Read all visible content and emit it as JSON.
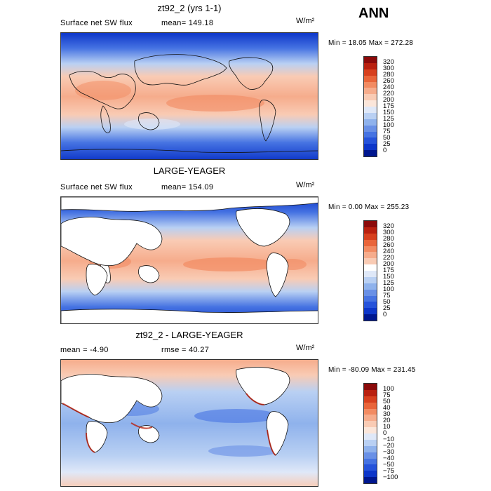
{
  "season": "ANN",
  "units": "W/m²",
  "panels": [
    {
      "title": "zt92_2 (yrs 1-1)",
      "left_label": "Surface net SW flux",
      "mean_label": "mean= 149.18",
      "minmax": "Min =  18.05 Max = 272.28",
      "colorbar": {
        "labels": [
          "320",
          "300",
          "280",
          "260",
          "240",
          "220",
          "200",
          "175",
          "150",
          "125",
          "100",
          "75",
          "50",
          "25",
          "0"
        ],
        "colors": [
          "#8b0a0a",
          "#b9200f",
          "#d7401e",
          "#e9653a",
          "#f28b62",
          "#f6ac8c",
          "#f9cbb4",
          "#fbe6da",
          "#dfe8f8",
          "#b9d0f3",
          "#8fb2ec",
          "#6990e6",
          "#4673e2",
          "#2653da",
          "#0d36c9",
          "#00178f"
        ]
      }
    },
    {
      "title": "LARGE-YEAGER",
      "left_label": "Surface net SW flux",
      "mean_label": "mean= 154.09",
      "minmax": "Min =   0.00 Max = 255.23",
      "colorbar": {
        "labels": [
          "320",
          "300",
          "280",
          "260",
          "240",
          "220",
          "200",
          "175",
          "150",
          "125",
          "100",
          "75",
          "50",
          "25",
          "0"
        ],
        "colors": [
          "#8b0a0a",
          "#b9200f",
          "#d7401e",
          "#e9653a",
          "#f28b62",
          "#f6ac8c",
          "#f9cbb4",
          "#ffffff",
          "#dfe8f8",
          "#b9d0f3",
          "#8fb2ec",
          "#6990e6",
          "#4673e2",
          "#2653da",
          "#0d36c9",
          "#00178f"
        ]
      }
    },
    {
      "title": "zt92_2 - LARGE-YEAGER",
      "left_label": "mean =   -4.90",
      "mean_label": "rmse =  40.27",
      "minmax": "Min = -80.09 Max = 231.45",
      "colorbar": {
        "labels": [
          "100",
          "75",
          "50",
          "40",
          "30",
          "20",
          "10",
          "0",
          "−10",
          "−20",
          "−30",
          "−40",
          "−50",
          "−75",
          "−100"
        ],
        "colors": [
          "#8b0a0a",
          "#b9200f",
          "#d7401e",
          "#e9653a",
          "#f28b62",
          "#f6ac8c",
          "#f9cbb4",
          "#fbe6da",
          "#dfe8f8",
          "#b9d0f3",
          "#8fb2ec",
          "#6990e6",
          "#4673e2",
          "#2653da",
          "#0d36c9",
          "#00178f"
        ]
      }
    }
  ]
}
